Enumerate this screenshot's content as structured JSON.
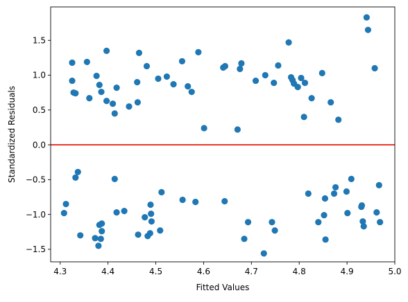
{
  "chart_data": {
    "type": "scatter",
    "title": "",
    "xlabel": "Fitted Values",
    "ylabel": "Standardized Residuals",
    "xlim": [
      4.28,
      5.0
    ],
    "ylim": [
      -1.68,
      1.98
    ],
    "xticks": [
      "4.3",
      "4.4",
      "4.5",
      "4.6",
      "4.7",
      "4.8",
      "4.9",
      "5.0"
    ],
    "xtick_values": [
      4.3,
      4.4,
      4.5,
      4.6,
      4.7,
      4.8,
      4.9,
      5.0
    ],
    "yticks": [
      "−1.5",
      "−1.0",
      "−0.5",
      "0.0",
      "0.5",
      "1.0",
      "1.5"
    ],
    "ytick_values": [
      -1.5,
      -1.0,
      -0.5,
      0.0,
      0.5,
      1.0,
      1.5
    ],
    "grid": false,
    "reference_line": {
      "y": 0.0,
      "color": "#e8291c"
    },
    "point_color": "#1f77b4",
    "points": [
      {
        "x": 4.325,
        "y": 1.18
      },
      {
        "x": 4.325,
        "y": 0.92
      },
      {
        "x": 4.328,
        "y": 0.75
      },
      {
        "x": 4.332,
        "y": 0.74
      },
      {
        "x": 4.356,
        "y": 1.19
      },
      {
        "x": 4.361,
        "y": 0.67
      },
      {
        "x": 4.376,
        "y": 0.99
      },
      {
        "x": 4.382,
        "y": 0.86
      },
      {
        "x": 4.386,
        "y": 0.76
      },
      {
        "x": 4.397,
        "y": 1.35
      },
      {
        "x": 4.397,
        "y": 0.63
      },
      {
        "x": 4.41,
        "y": 0.59
      },
      {
        "x": 4.414,
        "y": 0.45
      },
      {
        "x": 4.418,
        "y": 0.82
      },
      {
        "x": 4.444,
        "y": 0.55
      },
      {
        "x": 4.461,
        "y": 0.9
      },
      {
        "x": 4.462,
        "y": 0.61
      },
      {
        "x": 4.465,
        "y": 1.32
      },
      {
        "x": 4.481,
        "y": 1.13
      },
      {
        "x": 4.505,
        "y": 0.95
      },
      {
        "x": 4.523,
        "y": 0.98
      },
      {
        "x": 4.537,
        "y": 0.87
      },
      {
        "x": 4.555,
        "y": 1.2
      },
      {
        "x": 4.567,
        "y": 0.84
      },
      {
        "x": 4.575,
        "y": 0.76
      },
      {
        "x": 4.589,
        "y": 1.33
      },
      {
        "x": 4.601,
        "y": 0.24
      },
      {
        "x": 4.641,
        "y": 1.11
      },
      {
        "x": 4.645,
        "y": 1.13
      },
      {
        "x": 4.671,
        "y": 0.22
      },
      {
        "x": 4.676,
        "y": 1.09
      },
      {
        "x": 4.679,
        "y": 1.17
      },
      {
        "x": 4.709,
        "y": 0.92
      },
      {
        "x": 4.729,
        "y": 1.0
      },
      {
        "x": 4.747,
        "y": 0.89
      },
      {
        "x": 4.756,
        "y": 1.14
      },
      {
        "x": 4.778,
        "y": 1.47
      },
      {
        "x": 4.783,
        "y": 0.97
      },
      {
        "x": 4.786,
        "y": 0.93
      },
      {
        "x": 4.789,
        "y": 0.88
      },
      {
        "x": 4.797,
        "y": 0.83
      },
      {
        "x": 4.804,
        "y": 0.96
      },
      {
        "x": 4.81,
        "y": 0.4
      },
      {
        "x": 4.812,
        "y": 0.89
      },
      {
        "x": 4.826,
        "y": 0.67
      },
      {
        "x": 4.848,
        "y": 1.03
      },
      {
        "x": 4.866,
        "y": 0.61
      },
      {
        "x": 4.882,
        "y": 0.36
      },
      {
        "x": 4.941,
        "y": 1.83
      },
      {
        "x": 4.944,
        "y": 1.65
      },
      {
        "x": 4.958,
        "y": 1.1
      },
      {
        "x": 4.308,
        "y": -0.98
      },
      {
        "x": 4.312,
        "y": -0.85
      },
      {
        "x": 4.332,
        "y": -0.47
      },
      {
        "x": 4.337,
        "y": -0.39
      },
      {
        "x": 4.342,
        "y": -1.3
      },
      {
        "x": 4.373,
        "y": -1.34
      },
      {
        "x": 4.38,
        "y": -1.45
      },
      {
        "x": 4.382,
        "y": -1.15
      },
      {
        "x": 4.385,
        "y": -1.35
      },
      {
        "x": 4.387,
        "y": -1.13
      },
      {
        "x": 4.387,
        "y": -1.24
      },
      {
        "x": 4.414,
        "y": -0.49
      },
      {
        "x": 4.418,
        "y": -0.97
      },
      {
        "x": 4.434,
        "y": -0.95
      },
      {
        "x": 4.463,
        "y": -1.29
      },
      {
        "x": 4.477,
        "y": -1.04
      },
      {
        "x": 4.483,
        "y": -1.31
      },
      {
        "x": 4.488,
        "y": -1.27
      },
      {
        "x": 4.489,
        "y": -0.86
      },
      {
        "x": 4.49,
        "y": -0.99
      },
      {
        "x": 4.491,
        "y": -1.1
      },
      {
        "x": 4.509,
        "y": -1.23
      },
      {
        "x": 4.512,
        "y": -0.68
      },
      {
        "x": 4.556,
        "y": -0.79
      },
      {
        "x": 4.583,
        "y": -0.82
      },
      {
        "x": 4.644,
        "y": -0.81
      },
      {
        "x": 4.685,
        "y": -1.35
      },
      {
        "x": 4.693,
        "y": -1.11
      },
      {
        "x": 4.726,
        "y": -1.56
      },
      {
        "x": 4.743,
        "y": -1.11
      },
      {
        "x": 4.749,
        "y": -1.23
      },
      {
        "x": 4.819,
        "y": -0.7
      },
      {
        "x": 4.84,
        "y": -1.11
      },
      {
        "x": 4.852,
        "y": -1.01
      },
      {
        "x": 4.854,
        "y": -0.77
      },
      {
        "x": 4.855,
        "y": -1.36
      },
      {
        "x": 4.873,
        "y": -0.7
      },
      {
        "x": 4.876,
        "y": -0.61
      },
      {
        "x": 4.899,
        "y": -0.67
      },
      {
        "x": 4.901,
        "y": -0.98
      },
      {
        "x": 4.909,
        "y": -0.49
      },
      {
        "x": 4.93,
        "y": -0.89
      },
      {
        "x": 4.931,
        "y": -0.87
      },
      {
        "x": 4.933,
        "y": -1.1
      },
      {
        "x": 4.935,
        "y": -1.17
      },
      {
        "x": 4.962,
        "y": -0.97
      },
      {
        "x": 4.967,
        "y": -0.58
      },
      {
        "x": 4.969,
        "y": -1.11
      }
    ]
  }
}
